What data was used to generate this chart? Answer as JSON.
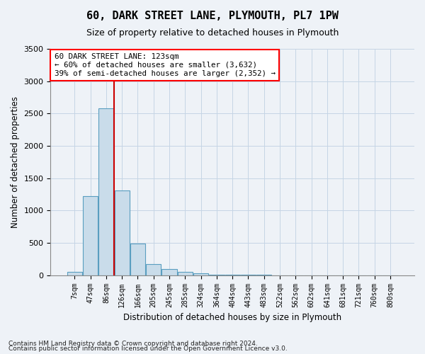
{
  "title": "60, DARK STREET LANE, PLYMOUTH, PL7 1PW",
  "subtitle": "Size of property relative to detached houses in Plymouth",
  "xlabel": "Distribution of detached houses by size in Plymouth",
  "ylabel": "Number of detached properties",
  "footnote1": "Contains HM Land Registry data © Crown copyright and database right 2024.",
  "footnote2": "Contains public sector information licensed under the Open Government Licence v3.0.",
  "bar_labels": [
    "7sqm",
    "47sqm",
    "86sqm",
    "126sqm",
    "166sqm",
    "205sqm",
    "245sqm",
    "285sqm",
    "324sqm",
    "364sqm",
    "404sqm",
    "443sqm",
    "483sqm",
    "522sqm",
    "562sqm",
    "602sqm",
    "641sqm",
    "681sqm",
    "721sqm",
    "760sqm",
    "800sqm"
  ],
  "bar_values": [
    50,
    1220,
    2580,
    1310,
    490,
    175,
    100,
    55,
    30,
    10,
    3,
    3,
    3,
    0,
    0,
    0,
    0,
    0,
    0,
    0,
    0
  ],
  "bar_color": "#c9dcea",
  "bar_edge_color": "#5a9ec0",
  "vline_index": 2.5,
  "vline_color": "#cc0000",
  "ylim": [
    0,
    3500
  ],
  "yticks": [
    0,
    500,
    1000,
    1500,
    2000,
    2500,
    3000,
    3500
  ],
  "annotation_line1": "60 DARK STREET LANE: 123sqm",
  "annotation_line2": "← 60% of detached houses are smaller (3,632)",
  "annotation_line3": "39% of semi-detached houses are larger (2,352) →",
  "bg_color": "#eef2f7",
  "plot_bg_color": "#eef2f7",
  "grid_color": "#c5d5e5",
  "title_fontsize": 11,
  "subtitle_fontsize": 9
}
